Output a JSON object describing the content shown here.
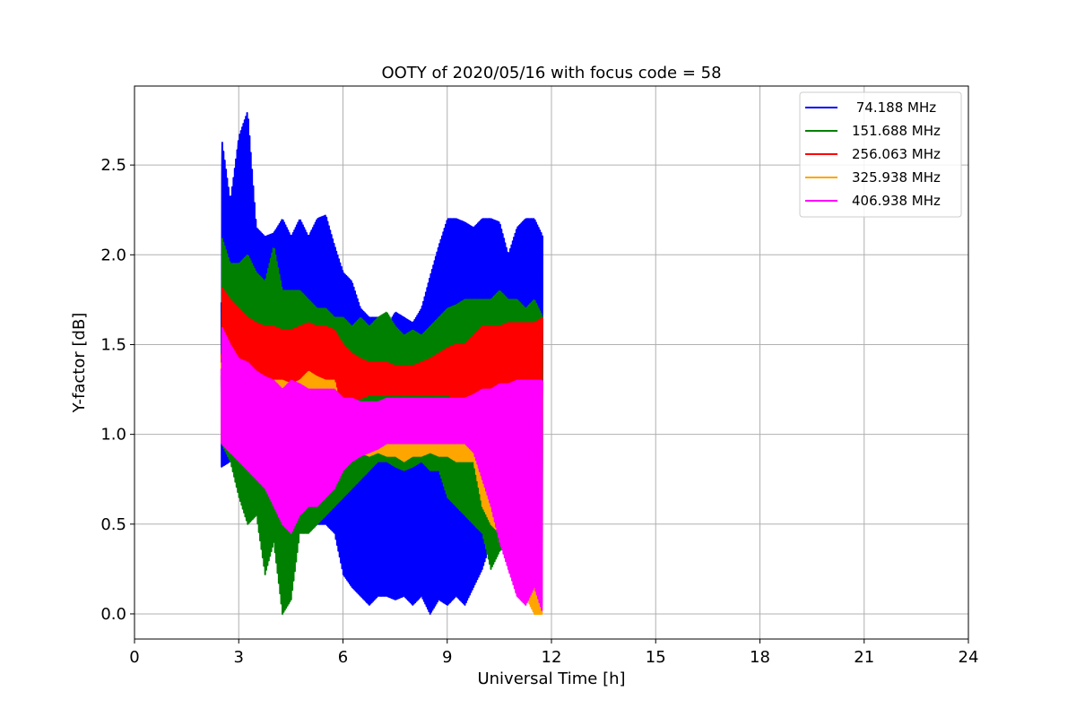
{
  "chart_data": {
    "type": "line",
    "title": "OOTY of 2020/05/16 with focus code = 58",
    "xlabel": "Universal Time [h]",
    "ylabel": "Y-factor [dB]",
    "xlim": [
      0,
      24
    ],
    "ylim": [
      -0.14,
      2.94
    ],
    "xticks": [
      "0",
      "3",
      "6",
      "9",
      "12",
      "15",
      "18",
      "21",
      "24"
    ],
    "yticks": [
      "0.0",
      "0.5",
      "1.0",
      "1.5",
      "2.0",
      "2.5"
    ],
    "grid": true,
    "legend_position": "upper-right",
    "series": [
      {
        "name": " 74.188 MHz",
        "color": "#0000ff",
        "x": [
          2.5,
          2.75,
          3.0,
          3.25,
          3.5,
          3.75,
          4.0,
          4.25,
          4.5,
          4.75,
          5.0,
          5.25,
          5.5,
          5.75,
          6.0,
          6.25,
          6.5,
          6.75,
          7.0,
          7.25,
          7.5,
          7.75,
          8.0,
          8.25,
          8.5,
          8.75,
          9.0,
          9.25,
          9.5,
          9.75,
          10.0,
          10.25,
          10.5,
          10.75,
          11.0,
          11.25,
          11.5,
          11.75
        ],
        "high": [
          2.65,
          2.3,
          2.66,
          2.8,
          2.15,
          2.1,
          2.12,
          2.2,
          2.1,
          2.2,
          2.1,
          2.2,
          2.22,
          2.05,
          1.9,
          1.85,
          1.7,
          1.65,
          1.65,
          1.6,
          1.68,
          1.65,
          1.62,
          1.7,
          1.88,
          2.05,
          2.2,
          2.2,
          2.18,
          2.15,
          2.2,
          2.2,
          2.18,
          2.0,
          2.15,
          2.2,
          2.2,
          2.1
        ],
        "low": [
          0.82,
          0.85,
          0.88,
          0.85,
          0.9,
          0.8,
          0.75,
          0.72,
          0.6,
          0.6,
          0.55,
          0.5,
          0.5,
          0.45,
          0.22,
          0.15,
          0.1,
          0.05,
          0.1,
          0.1,
          0.08,
          0.1,
          0.05,
          0.1,
          0.0,
          0.08,
          0.05,
          0.1,
          0.05,
          0.15,
          0.25,
          0.4,
          0.45,
          0.55,
          0.45,
          0.5,
          0.55,
          0.6
        ]
      },
      {
        "name": "151.688 MHz",
        "color": "#008000",
        "x": [
          2.5,
          2.75,
          3.0,
          3.25,
          3.5,
          3.75,
          4.0,
          4.25,
          4.5,
          4.75,
          5.0,
          5.25,
          5.5,
          5.75,
          6.0,
          6.25,
          6.5,
          6.75,
          7.0,
          7.25,
          7.5,
          7.75,
          8.0,
          8.25,
          8.5,
          8.75,
          9.0,
          9.25,
          9.5,
          9.75,
          10.0,
          10.25,
          10.5,
          10.75,
          11.0,
          11.25,
          11.5,
          11.75
        ],
        "high": [
          2.1,
          1.95,
          1.95,
          2.0,
          1.9,
          1.85,
          2.05,
          1.8,
          1.8,
          1.8,
          1.75,
          1.7,
          1.7,
          1.65,
          1.65,
          1.6,
          1.65,
          1.6,
          1.65,
          1.68,
          1.6,
          1.55,
          1.58,
          1.55,
          1.6,
          1.65,
          1.7,
          1.72,
          1.75,
          1.75,
          1.75,
          1.75,
          1.8,
          1.75,
          1.75,
          1.7,
          1.75,
          1.65
        ],
        "low": [
          0.95,
          0.85,
          0.65,
          0.5,
          0.55,
          0.22,
          0.4,
          0.0,
          0.08,
          0.45,
          0.45,
          0.5,
          0.55,
          0.6,
          0.65,
          0.7,
          0.75,
          0.8,
          0.85,
          0.85,
          0.82,
          0.8,
          0.82,
          0.85,
          0.8,
          0.8,
          0.65,
          0.6,
          0.55,
          0.5,
          0.45,
          0.25,
          0.35,
          0.4,
          0.3,
          0.15,
          0.05,
          0.05
        ]
      },
      {
        "name": "256.063 MHz",
        "color": "#ff0000",
        "x": [
          2.5,
          2.75,
          3.0,
          3.25,
          3.5,
          3.75,
          4.0,
          4.25,
          4.5,
          4.75,
          5.0,
          5.25,
          5.5,
          5.75,
          6.0,
          6.25,
          6.5,
          6.75,
          7.0,
          7.25,
          7.5,
          7.75,
          8.0,
          8.25,
          8.5,
          8.75,
          9.0,
          9.25,
          9.5,
          9.75,
          10.0,
          10.25,
          10.5,
          10.75,
          11.0,
          11.25,
          11.5,
          11.75
        ],
        "high": [
          1.82,
          1.75,
          1.7,
          1.65,
          1.62,
          1.6,
          1.6,
          1.58,
          1.58,
          1.6,
          1.62,
          1.6,
          1.6,
          1.58,
          1.5,
          1.45,
          1.42,
          1.4,
          1.4,
          1.4,
          1.38,
          1.38,
          1.38,
          1.4,
          1.42,
          1.45,
          1.48,
          1.5,
          1.5,
          1.55,
          1.6,
          1.6,
          1.6,
          1.62,
          1.62,
          1.62,
          1.62,
          1.65
        ],
        "low": [
          1.4,
          1.35,
          1.3,
          1.25,
          1.25,
          1.2,
          1.2,
          1.2,
          1.22,
          1.22,
          1.2,
          1.2,
          1.2,
          1.18,
          1.2,
          1.2,
          1.2,
          1.22,
          1.22,
          1.22,
          1.22,
          1.22,
          1.22,
          1.22,
          1.22,
          1.22,
          1.22,
          1.2,
          1.2,
          1.2,
          1.2,
          1.22,
          1.22,
          1.25,
          1.25,
          1.25,
          1.25,
          1.28
        ]
      },
      {
        "name": "325.938 MHz",
        "color": "#ffa500",
        "x": [
          2.5,
          2.75,
          3.0,
          3.25,
          3.5,
          3.75,
          4.0,
          4.25,
          4.5,
          4.75,
          5.0,
          5.25,
          5.5,
          5.75,
          6.0,
          6.25,
          6.5,
          6.75,
          7.0,
          7.25,
          7.5,
          7.75,
          8.0,
          8.25,
          8.5,
          8.75,
          9.0,
          9.25,
          9.5,
          9.75,
          10.0,
          10.25,
          10.5,
          10.75,
          11.0,
          11.25,
          11.5,
          11.75
        ],
        "high": [
          1.5,
          1.45,
          1.35,
          1.3,
          1.3,
          1.28,
          1.3,
          1.3,
          1.28,
          1.3,
          1.35,
          1.32,
          1.3,
          1.3,
          1.1,
          1.08,
          1.08,
          1.1,
          1.05,
          1.05,
          1.05,
          1.0,
          1.02,
          1.05,
          1.05,
          1.05,
          1.05,
          1.05,
          1.05,
          1.1,
          1.2,
          1.2,
          1.25,
          1.25,
          1.25,
          1.25,
          1.28,
          1.3
        ],
        "low": [
          0.95,
          0.9,
          0.9,
          0.88,
          0.85,
          0.88,
          0.85,
          0.8,
          0.85,
          0.85,
          0.85,
          0.85,
          0.85,
          0.85,
          0.9,
          0.92,
          0.9,
          0.88,
          0.9,
          0.88,
          0.88,
          0.85,
          0.88,
          0.88,
          0.9,
          0.88,
          0.88,
          0.85,
          0.85,
          0.85,
          0.6,
          0.5,
          0.45,
          0.4,
          0.35,
          0.1,
          0.0,
          0.0
        ]
      },
      {
        "name": "406.938 MHz",
        "color": "#ff00ff",
        "x": [
          2.5,
          2.75,
          3.0,
          3.25,
          3.5,
          3.75,
          4.0,
          4.25,
          4.5,
          4.75,
          5.0,
          5.25,
          5.5,
          5.75,
          6.0,
          6.25,
          6.5,
          6.75,
          7.0,
          7.25,
          7.5,
          7.75,
          8.0,
          8.25,
          8.5,
          8.75,
          9.0,
          9.25,
          9.5,
          9.75,
          10.0,
          10.25,
          10.5,
          10.75,
          11.0,
          11.25,
          11.5,
          11.75
        ],
        "high": [
          1.6,
          1.5,
          1.42,
          1.4,
          1.35,
          1.32,
          1.3,
          1.25,
          1.3,
          1.28,
          1.25,
          1.25,
          1.25,
          1.25,
          1.2,
          1.2,
          1.18,
          1.18,
          1.18,
          1.2,
          1.2,
          1.2,
          1.2,
          1.2,
          1.2,
          1.2,
          1.2,
          1.2,
          1.2,
          1.22,
          1.25,
          1.25,
          1.28,
          1.28,
          1.3,
          1.3,
          1.3,
          1.3
        ],
        "low": [
          0.95,
          0.9,
          0.85,
          0.8,
          0.75,
          0.7,
          0.6,
          0.5,
          0.45,
          0.55,
          0.6,
          0.6,
          0.65,
          0.7,
          0.8,
          0.85,
          0.88,
          0.9,
          0.92,
          0.95,
          0.95,
          0.95,
          0.95,
          0.95,
          0.95,
          0.95,
          0.95,
          0.95,
          0.95,
          0.9,
          0.75,
          0.6,
          0.4,
          0.25,
          0.1,
          0.05,
          0.15,
          0.0
        ]
      }
    ]
  }
}
